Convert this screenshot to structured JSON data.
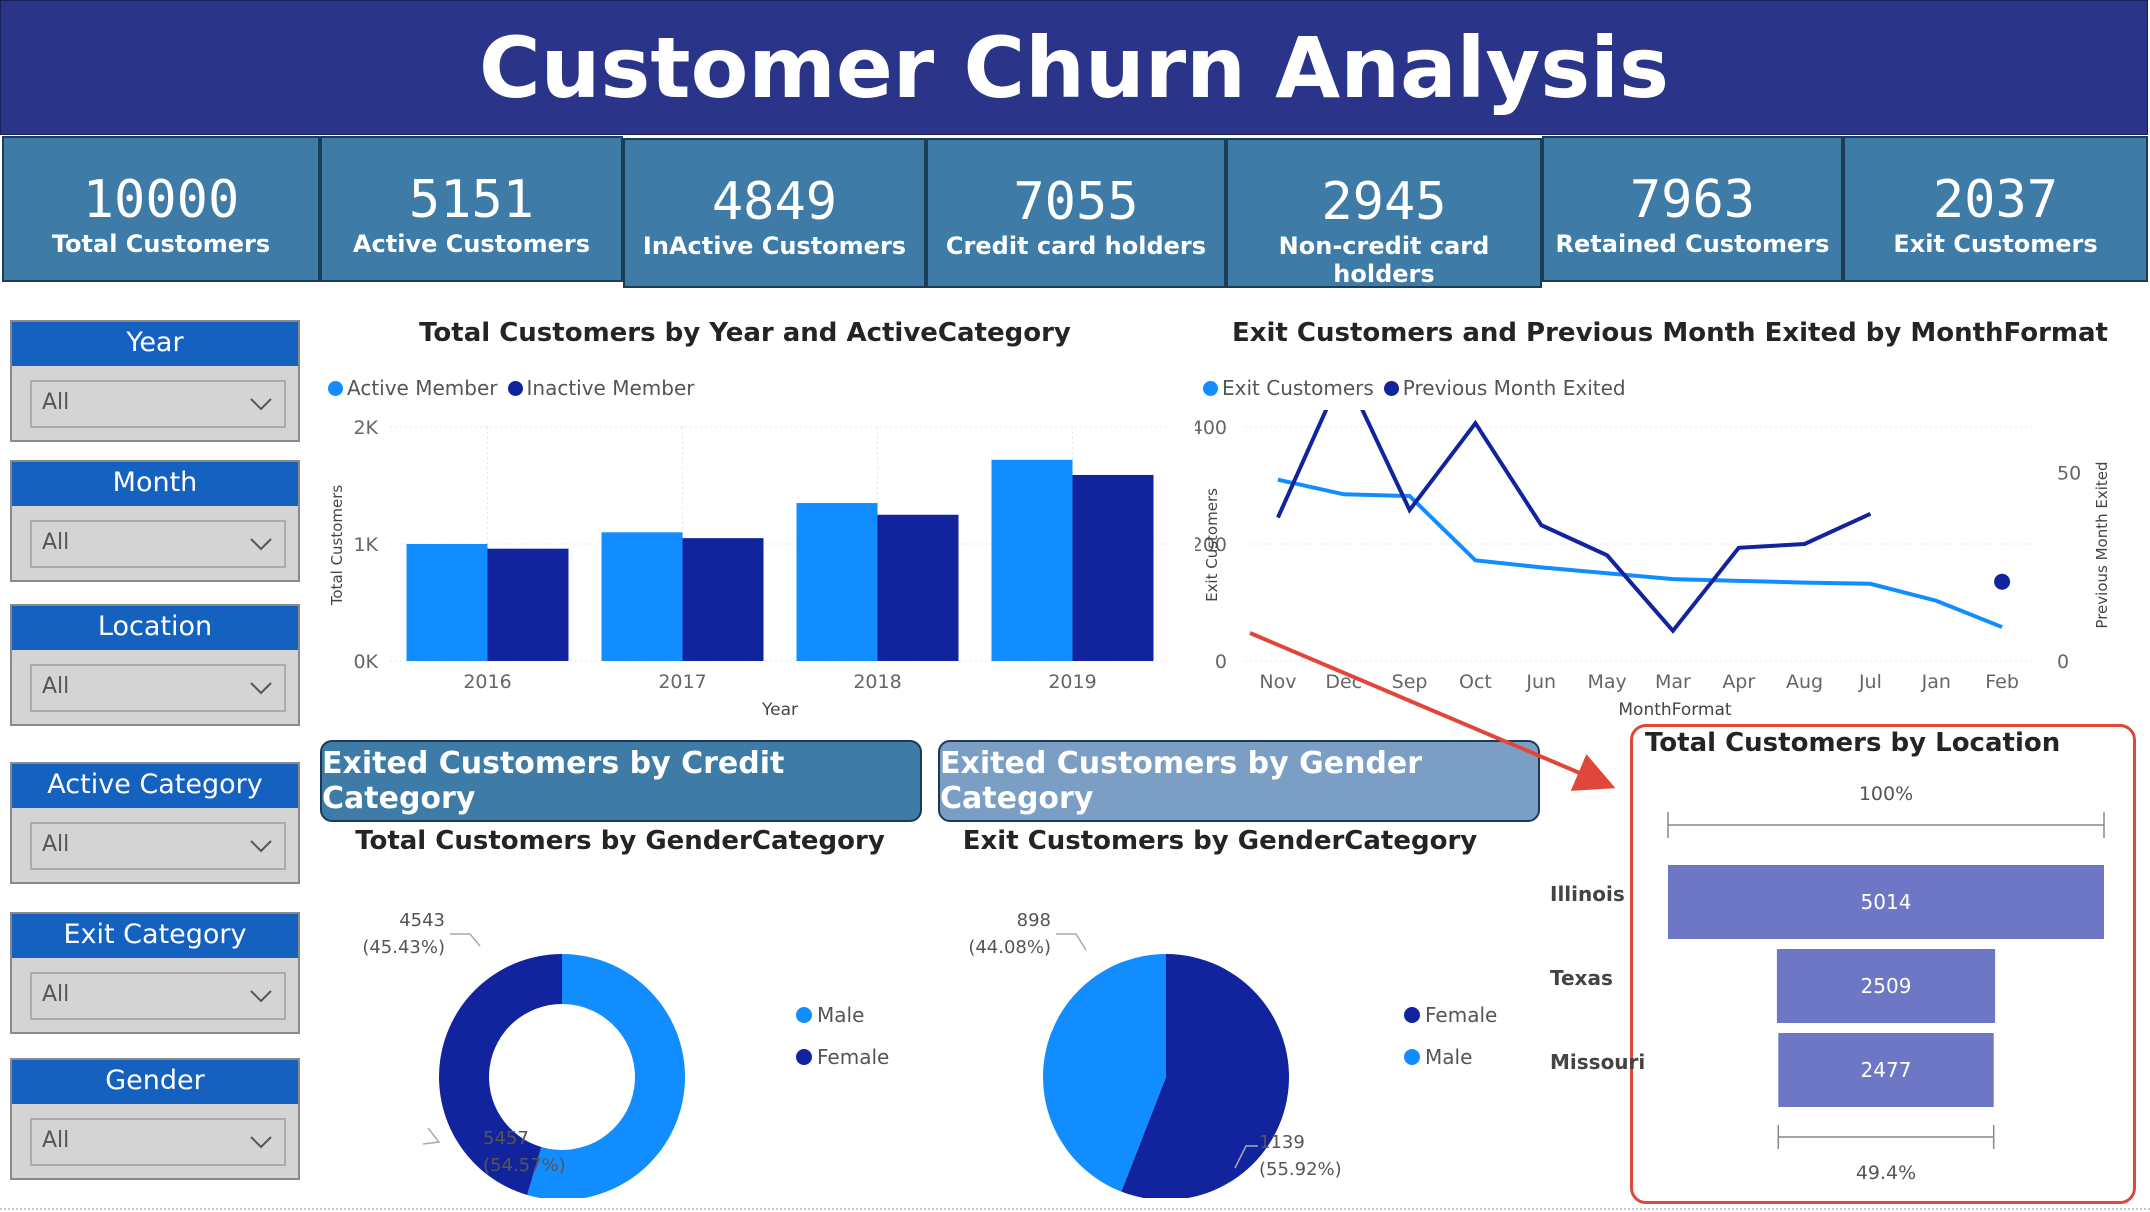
{
  "header": {
    "title": "Customer Churn Analysis"
  },
  "kpis": [
    {
      "value": "10000",
      "label": "Total Customers"
    },
    {
      "value": "5151",
      "label": "Active Customers"
    },
    {
      "value": "4849",
      "label": "InActive Customers"
    },
    {
      "value": "7055",
      "label": "Credit card holders"
    },
    {
      "value": "2945",
      "label": "Non-credit card holders"
    },
    {
      "value": "7963",
      "label": "Retained Customers"
    },
    {
      "value": "2037",
      "label": "Exit Customers"
    }
  ],
  "slicers": [
    {
      "label": "Year",
      "value": "All"
    },
    {
      "label": "Month",
      "value": "All"
    },
    {
      "label": "Location",
      "value": "All"
    },
    {
      "label": "Active Category",
      "value": "All"
    },
    {
      "label": "Exit Category",
      "value": "All"
    },
    {
      "label": "Gender",
      "value": "All"
    }
  ],
  "buttons": {
    "credit": "Exited Customers by Credit Category",
    "gender": "Exited Customers by Gender Category"
  },
  "colors": {
    "primary": "#118dff",
    "secondary": "#12239e",
    "funnel": "#6e76c6",
    "header": "#2a3589",
    "kpi": "#3e7ba6",
    "highlight": "#e0463a"
  },
  "chart_data": [
    {
      "type": "bar",
      "title": "Total Customers by Year and ActiveCategory",
      "xlabel": "Year",
      "ylabel": "Total Customers",
      "categories": [
        "2016",
        "2017",
        "2018",
        "2019"
      ],
      "series": [
        {
          "name": "Active Member",
          "values": [
            1000,
            1100,
            1350,
            1720
          ]
        },
        {
          "name": "Inactive Member",
          "values": [
            960,
            1050,
            1250,
            1590
          ]
        }
      ],
      "y_ticks": [
        "0K",
        "1K",
        "2K"
      ],
      "ylim": [
        0,
        2000
      ],
      "legend": "top-left"
    },
    {
      "type": "line",
      "title": "Exit Customers and Previous Month Exited by MonthFormat",
      "xlabel": "MonthFormat",
      "ylabel": "Exit Customers",
      "y2label": "Previous Month Exited",
      "categories": [
        "Nov",
        "Dec",
        "Sep",
        "Oct",
        "Jun",
        "May",
        "Mar",
        "Apr",
        "Aug",
        "Jul",
        "Jan",
        "Feb"
      ],
      "series": [
        {
          "name": "Exit Customers",
          "axis": "left",
          "values": [
            310,
            285,
            282,
            172,
            160,
            150,
            140,
            137,
            134,
            132,
            103,
            58
          ]
        },
        {
          "name": "Previous Month Exited",
          "axis": "right",
          "values": [
            38,
            77,
            40,
            63,
            36,
            28,
            8,
            30,
            31,
            39,
            null,
            21
          ]
        }
      ],
      "y_ticks": [
        "0",
        "200",
        "400"
      ],
      "y2_ticks": [
        "0",
        "50"
      ],
      "ylim": [
        0,
        400
      ],
      "y2lim": [
        0,
        62
      ],
      "legend": "top-left"
    },
    {
      "type": "pie",
      "variant": "donut",
      "title": "Total Customers by GenderCategory",
      "slices": [
        {
          "name": "Male",
          "value": 5457,
          "label": "5457",
          "pct": "(54.57%)"
        },
        {
          "name": "Female",
          "value": 4543,
          "label": "4543",
          "pct": "(45.43%)"
        }
      ],
      "legend": "right"
    },
    {
      "type": "pie",
      "title": "Exit Customers by GenderCategory",
      "slices": [
        {
          "name": "Female",
          "value": 1139,
          "label": "1139",
          "pct": "(55.92%)"
        },
        {
          "name": "Male",
          "value": 898,
          "label": "898",
          "pct": "(44.08%)"
        }
      ],
      "legend": "right"
    },
    {
      "type": "bar",
      "variant": "funnel",
      "title": "Total Customers by Location",
      "categories": [
        "Illinois",
        "Texas",
        "Missouri"
      ],
      "values": [
        5014,
        2509,
        2477
      ],
      "top_pct": "100%",
      "bottom_pct": "49.4%"
    }
  ]
}
